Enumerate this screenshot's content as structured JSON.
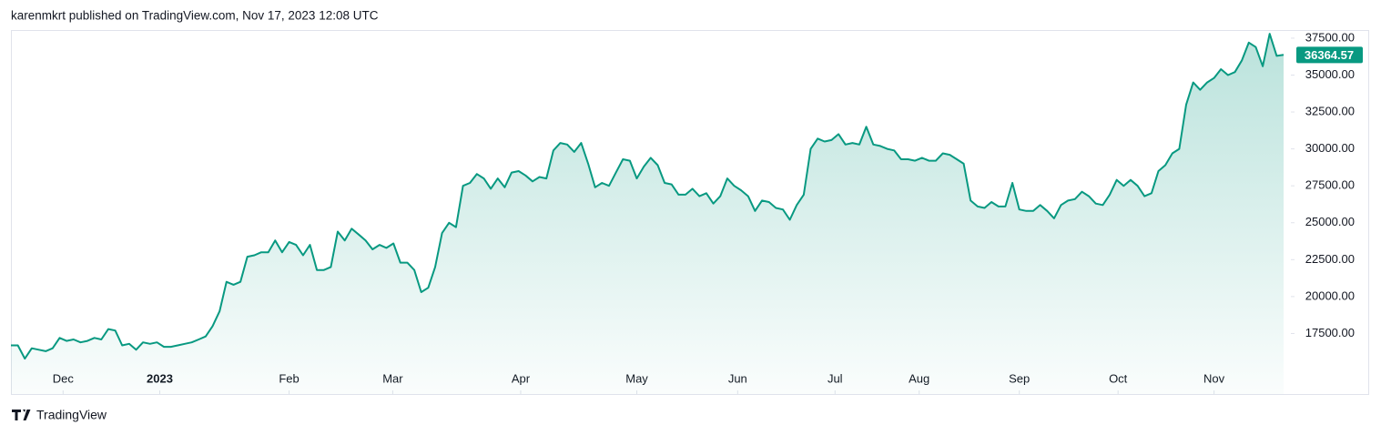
{
  "header": "karenmkrt published on TradingView.com, Nov 17, 2023 12:08 UTC",
  "brand": "TradingView",
  "chart_data": {
    "type": "area",
    "series": [
      {
        "color": "#089981",
        "values": [
          16700,
          16700,
          15800,
          16500,
          16400,
          16300,
          16500,
          17200,
          17000,
          17100,
          16900,
          17000,
          17200,
          17100,
          17800,
          17700,
          16700,
          16800,
          16400,
          16900,
          16800,
          16900,
          16600,
          16600,
          16700,
          16800,
          16900,
          17100,
          17300,
          18000,
          19000,
          21000,
          20800,
          21000,
          22700,
          22800,
          23000,
          23000,
          23800,
          23000,
          23700,
          23500,
          22800,
          23500,
          21800,
          21800,
          22000,
          24400,
          23800,
          24600,
          24200,
          23800,
          23200,
          23500,
          23300,
          23600,
          22300,
          22300,
          21800,
          20300,
          20600,
          22000,
          24300,
          25000,
          24700,
          27500,
          27700,
          28300,
          28000,
          27300,
          28000,
          27400,
          28400,
          28500,
          28200,
          27800,
          28100,
          28000,
          29900,
          30400,
          30300,
          29800,
          30400,
          29000,
          27400,
          27700,
          27500,
          28400,
          29300,
          29200,
          28000,
          28800,
          29400,
          28900,
          27700,
          27600,
          26900,
          26900,
          27300,
          26800,
          27000,
          26300,
          26800,
          28000,
          27500,
          27200,
          26800,
          25800,
          26500,
          26400,
          26000,
          25900,
          25200,
          26200,
          26900,
          30000,
          30700,
          30500,
          30600,
          31000,
          30300,
          30400,
          30300,
          31500,
          30300,
          30200,
          30000,
          29900,
          29300,
          29300,
          29200,
          29400,
          29200,
          29200,
          29700,
          29600,
          29300,
          29000,
          26500,
          26100,
          26000,
          26400,
          26100,
          26100,
          27700,
          25900,
          25800,
          25800,
          26200,
          25800,
          25300,
          26200,
          26500,
          26600,
          27100,
          26800,
          26300,
          26200,
          26900,
          27900,
          27500,
          27900,
          27500,
          26800,
          27000,
          28500,
          28900,
          29700,
          30000,
          33000,
          34500,
          34000,
          34500,
          34800,
          35400,
          35000,
          35200,
          36000,
          37200,
          36900,
          35600,
          37800,
          36300,
          36364.57
        ]
      }
    ],
    "xlim": [
      0,
      183
    ],
    "xticks": [
      {
        "value": 7.5,
        "label": "Dec"
      },
      {
        "value": 21.4,
        "label": "2023"
      },
      {
        "value": 40,
        "label": "Feb"
      },
      {
        "value": 54.9,
        "label": "Mar"
      },
      {
        "value": 73.3,
        "label": "Apr"
      },
      {
        "value": 90,
        "label": "May"
      },
      {
        "value": 104.5,
        "label": "Jun"
      },
      {
        "value": 118.5,
        "label": "Jul"
      },
      {
        "value": 130.6,
        "label": "Aug"
      },
      {
        "value": 145,
        "label": "Sep"
      },
      {
        "value": 159.2,
        "label": "Oct"
      },
      {
        "value": 173,
        "label": "Nov"
      }
    ],
    "ylim": [
      13400,
      38050
    ],
    "yticks": [
      {
        "value": 17500,
        "label": "17500.00"
      },
      {
        "value": 20000,
        "label": "20000.00"
      },
      {
        "value": 22500,
        "label": "22500.00"
      },
      {
        "value": 25000,
        "label": "25000.00"
      },
      {
        "value": 27500,
        "label": "27500.00"
      },
      {
        "value": 30000,
        "label": "30000.00"
      },
      {
        "value": 32500,
        "label": "32500.00"
      },
      {
        "value": 35000,
        "label": "35000.00"
      },
      {
        "value": 37500,
        "label": "37500.00"
      }
    ],
    "grid": false
  }
}
